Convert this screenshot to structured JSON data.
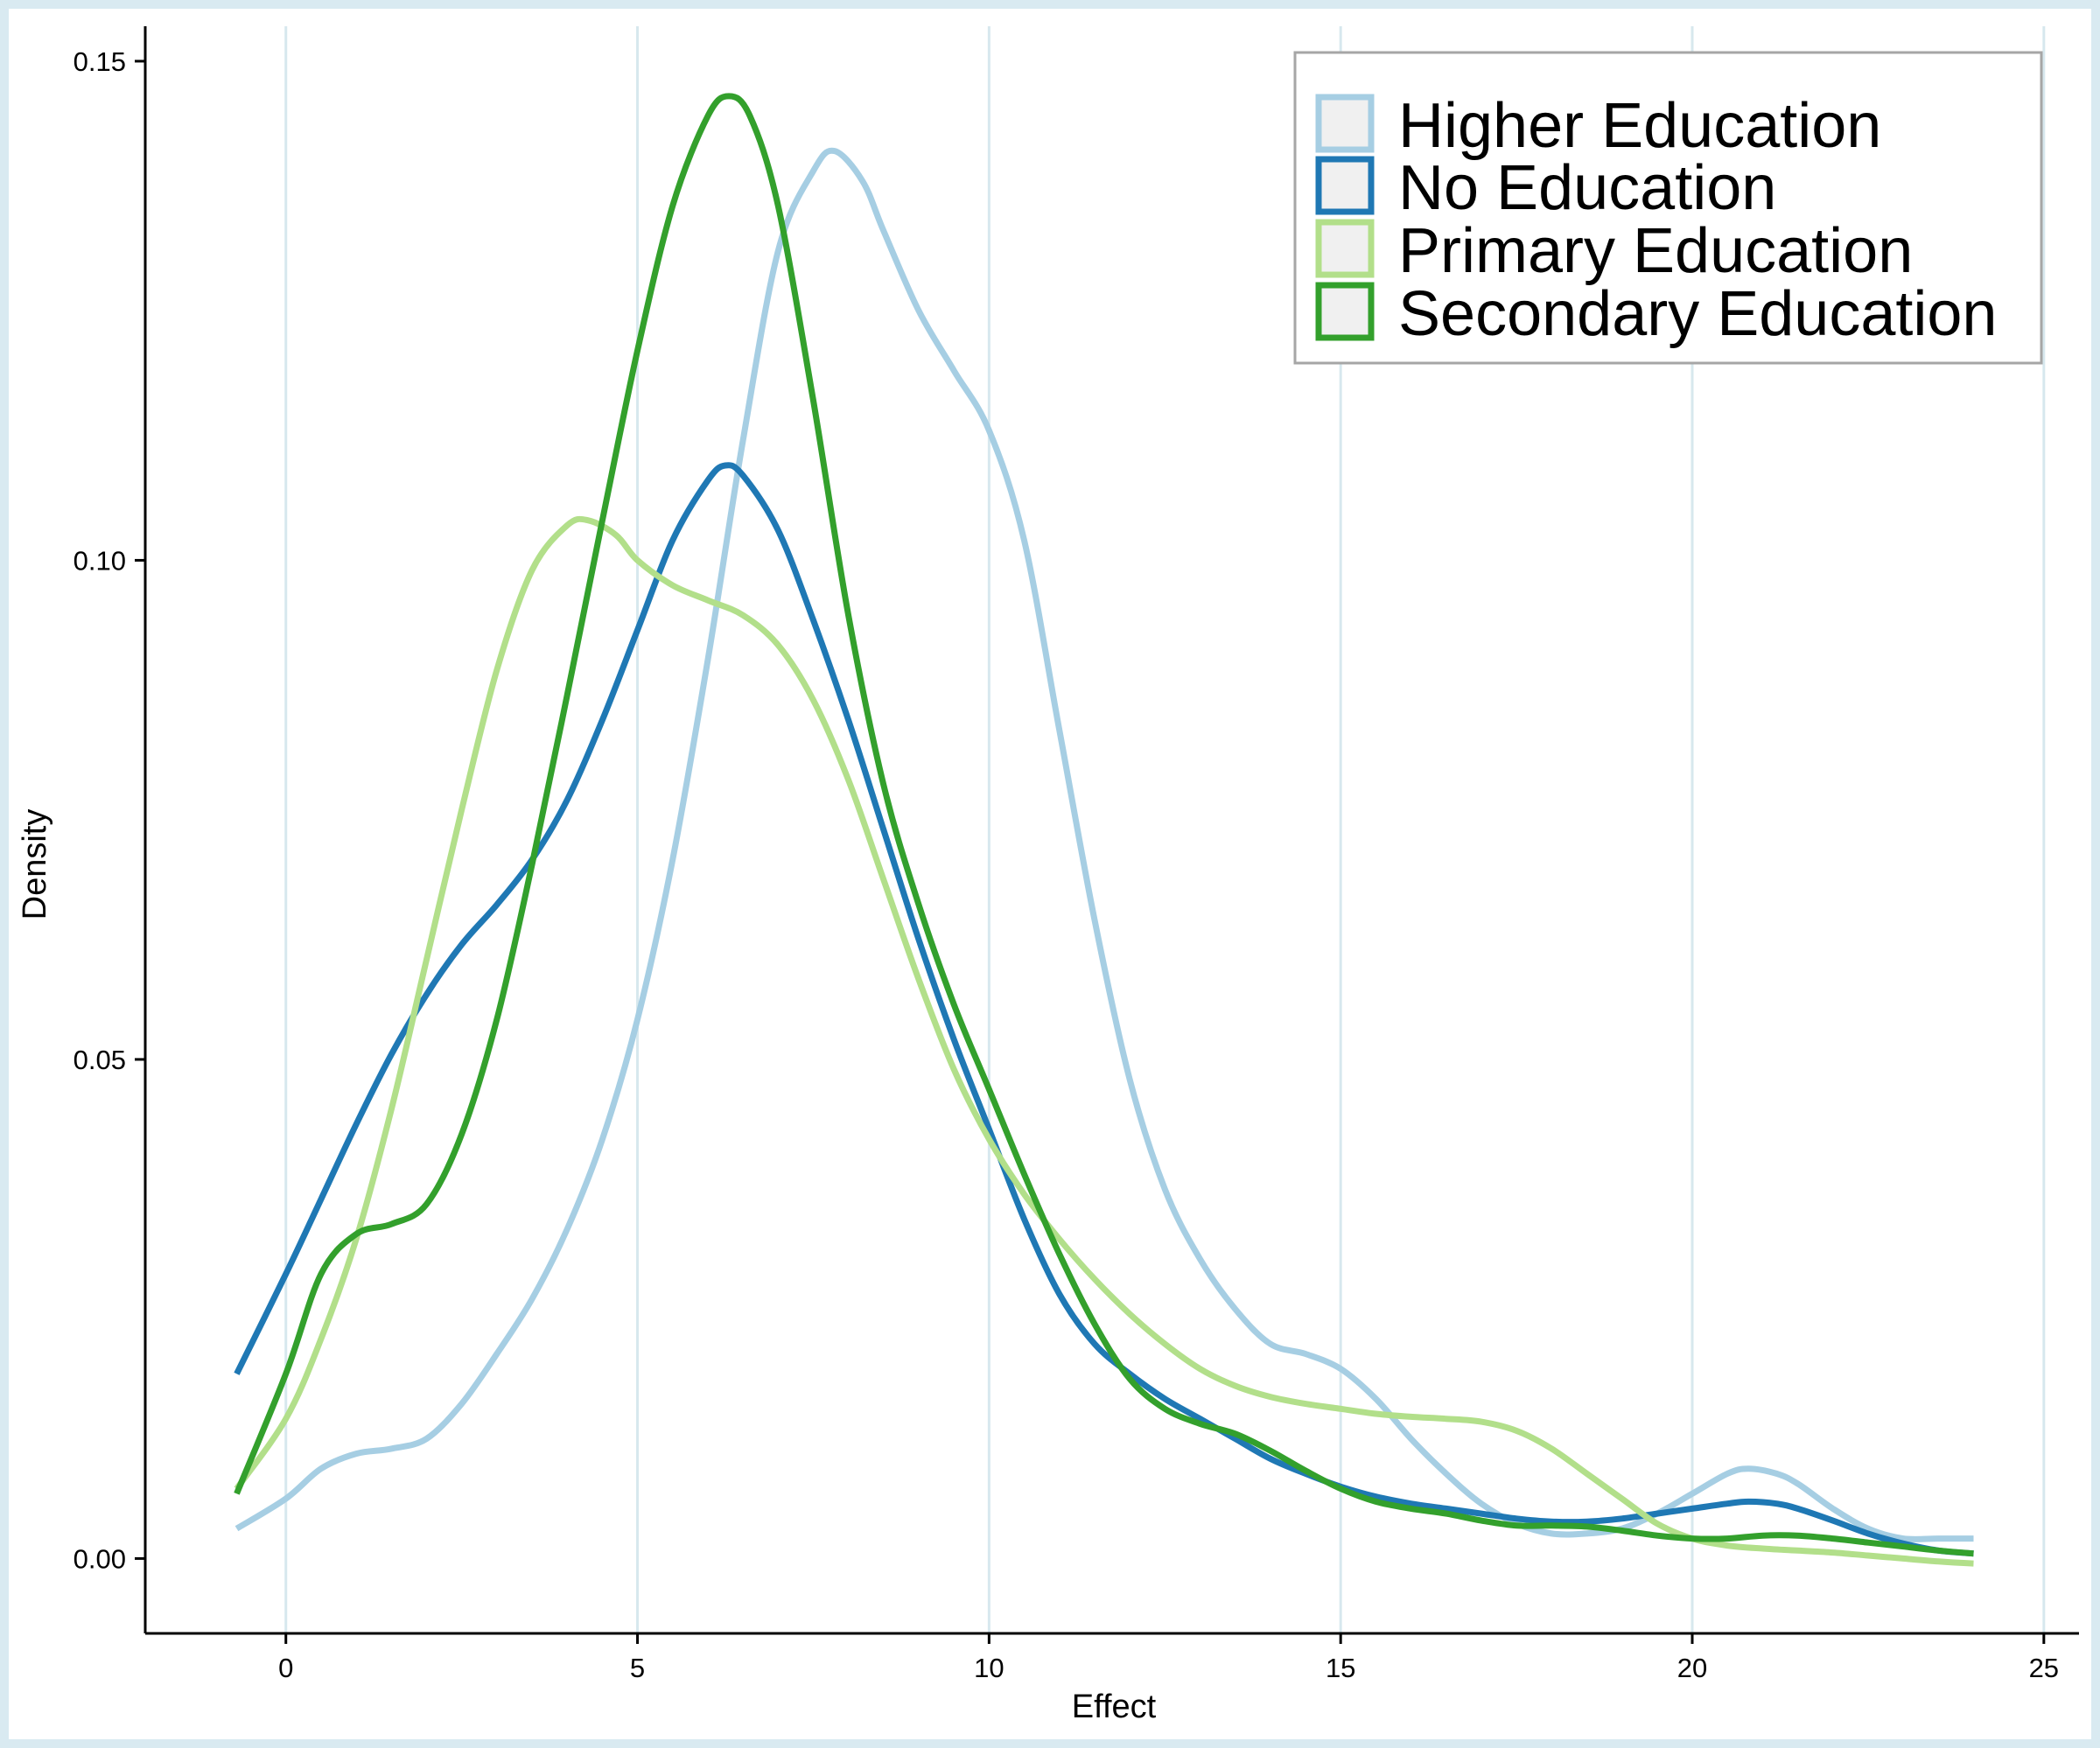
{
  "chart_data": {
    "type": "line",
    "title": "",
    "xlabel": "Effect",
    "ylabel": "Density",
    "xlim": [
      -2,
      25.5
    ],
    "ylim": [
      -0.0075,
      0.1535
    ],
    "x_ticks": [
      {
        "value": 0,
        "label": "0"
      },
      {
        "value": 5,
        "label": "5"
      },
      {
        "value": 10,
        "label": "10"
      },
      {
        "value": 15,
        "label": "15"
      },
      {
        "value": 20,
        "label": "20"
      },
      {
        "value": 25,
        "label": "25"
      }
    ],
    "y_ticks": [
      {
        "value": 0,
        "label": "0.00"
      },
      {
        "value": 0.05,
        "label": "0.05"
      },
      {
        "value": 0.1,
        "label": "0.10"
      },
      {
        "value": 0.15,
        "label": "0.15"
      }
    ],
    "grid": {
      "vertical": true,
      "horizontal": false
    },
    "legend_position": "top-right",
    "series": [
      {
        "name": "Higher Education",
        "color": "#a6cee3",
        "points": [
          [
            -0.7,
            0.003
          ],
          [
            0,
            0.006
          ],
          [
            0.5,
            0.009
          ],
          [
            1,
            0.0105
          ],
          [
            1.5,
            0.011
          ],
          [
            2,
            0.012
          ],
          [
            2.5,
            0.0155
          ],
          [
            3,
            0.0205
          ],
          [
            3.5,
            0.026
          ],
          [
            4,
            0.033
          ],
          [
            4.5,
            0.042
          ],
          [
            5,
            0.054
          ],
          [
            5.5,
            0.07
          ],
          [
            6,
            0.09
          ],
          [
            6.5,
            0.112
          ],
          [
            7,
            0.131
          ],
          [
            7.5,
            0.139
          ],
          [
            7.8,
            0.141
          ],
          [
            8.2,
            0.138
          ],
          [
            8.5,
            0.133
          ],
          [
            9,
            0.125
          ],
          [
            9.5,
            0.119
          ],
          [
            10,
            0.113
          ],
          [
            10.5,
            0.102
          ],
          [
            11,
            0.083
          ],
          [
            11.5,
            0.064
          ],
          [
            12,
            0.048
          ],
          [
            12.5,
            0.037
          ],
          [
            13,
            0.03
          ],
          [
            13.5,
            0.025
          ],
          [
            14,
            0.0215
          ],
          [
            14.5,
            0.0205
          ],
          [
            15,
            0.019
          ],
          [
            15.5,
            0.016
          ],
          [
            16,
            0.012
          ],
          [
            16.5,
            0.0085
          ],
          [
            17,
            0.0055
          ],
          [
            17.5,
            0.0035
          ],
          [
            18,
            0.0025
          ],
          [
            18.5,
            0.0025
          ],
          [
            19,
            0.003
          ],
          [
            19.5,
            0.0045
          ],
          [
            20,
            0.0065
          ],
          [
            20.5,
            0.0085
          ],
          [
            20.8,
            0.009
          ],
          [
            21.2,
            0.0085
          ],
          [
            21.5,
            0.0075
          ],
          [
            22,
            0.005
          ],
          [
            22.5,
            0.003
          ],
          [
            23,
            0.002
          ],
          [
            23.5,
            0.002
          ],
          [
            24,
            0.002
          ]
        ]
      },
      {
        "name": "No Education",
        "color": "#1f78b4",
        "points": [
          [
            -0.7,
            0.0185
          ],
          [
            0,
            0.0285
          ],
          [
            0.5,
            0.036
          ],
          [
            1,
            0.0435
          ],
          [
            1.5,
            0.0505
          ],
          [
            2,
            0.0565
          ],
          [
            2.5,
            0.0615
          ],
          [
            3,
            0.0655
          ],
          [
            3.5,
            0.07
          ],
          [
            4,
            0.076
          ],
          [
            4.5,
            0.084
          ],
          [
            5,
            0.093
          ],
          [
            5.5,
            0.102
          ],
          [
            6,
            0.108
          ],
          [
            6.25,
            0.1095
          ],
          [
            6.5,
            0.1085
          ],
          [
            7,
            0.103
          ],
          [
            7.5,
            0.094
          ],
          [
            8,
            0.084
          ],
          [
            8.5,
            0.073
          ],
          [
            9,
            0.062
          ],
          [
            9.5,
            0.052
          ],
          [
            10,
            0.043
          ],
          [
            10.5,
            0.034
          ],
          [
            11,
            0.0265
          ],
          [
            11.5,
            0.0215
          ],
          [
            12,
            0.0185
          ],
          [
            12.5,
            0.016
          ],
          [
            13,
            0.014
          ],
          [
            13.5,
            0.012
          ],
          [
            14,
            0.01
          ],
          [
            14.5,
            0.0085
          ],
          [
            15,
            0.0072
          ],
          [
            15.5,
            0.0062
          ],
          [
            16,
            0.0055
          ],
          [
            16.5,
            0.005
          ],
          [
            17,
            0.0045
          ],
          [
            17.5,
            0.004
          ],
          [
            18,
            0.0037
          ],
          [
            18.5,
            0.0037
          ],
          [
            19,
            0.004
          ],
          [
            19.5,
            0.0045
          ],
          [
            20,
            0.005
          ],
          [
            20.5,
            0.0055
          ],
          [
            20.8,
            0.0057
          ],
          [
            21.2,
            0.0055
          ],
          [
            21.5,
            0.005
          ],
          [
            22,
            0.0038
          ],
          [
            22.5,
            0.0025
          ],
          [
            23,
            0.0015
          ],
          [
            23.5,
            0.0008
          ],
          [
            24,
            0.0005
          ]
        ]
      },
      {
        "name": "Primary Education",
        "color": "#b2df8a",
        "points": [
          [
            -0.7,
            0.007
          ],
          [
            0,
            0.014
          ],
          [
            0.5,
            0.022
          ],
          [
            1,
            0.032
          ],
          [
            1.5,
            0.045
          ],
          [
            2,
            0.06
          ],
          [
            2.5,
            0.075
          ],
          [
            3,
            0.089
          ],
          [
            3.5,
            0.099
          ],
          [
            4,
            0.1035
          ],
          [
            4.3,
            0.104
          ],
          [
            4.7,
            0.1025
          ],
          [
            5,
            0.1
          ],
          [
            5.5,
            0.0975
          ],
          [
            6,
            0.096
          ],
          [
            6.5,
            0.0945
          ],
          [
            7,
            0.0915
          ],
          [
            7.5,
            0.086
          ],
          [
            8,
            0.078
          ],
          [
            8.5,
            0.068
          ],
          [
            9,
            0.058
          ],
          [
            9.5,
            0.049
          ],
          [
            10,
            0.042
          ],
          [
            10.5,
            0.0365
          ],
          [
            11,
            0.032
          ],
          [
            11.5,
            0.028
          ],
          [
            12,
            0.0245
          ],
          [
            12.5,
            0.0215
          ],
          [
            13,
            0.019
          ],
          [
            13.5,
            0.0173
          ],
          [
            14,
            0.0162
          ],
          [
            14.5,
            0.0155
          ],
          [
            15,
            0.015
          ],
          [
            15.5,
            0.0145
          ],
          [
            16,
            0.0142
          ],
          [
            16.5,
            0.014
          ],
          [
            17,
            0.0137
          ],
          [
            17.5,
            0.0128
          ],
          [
            18,
            0.011
          ],
          [
            18.5,
            0.0085
          ],
          [
            19,
            0.006
          ],
          [
            19.5,
            0.0035
          ],
          [
            20,
            0.002
          ],
          [
            20.5,
            0.0013
          ],
          [
            21,
            0.001
          ],
          [
            21.5,
            0.0008
          ],
          [
            22,
            0.0006
          ],
          [
            22.5,
            0.0003
          ],
          [
            23,
            0.0
          ],
          [
            23.5,
            -0.0003
          ],
          [
            24,
            -0.0005
          ]
        ]
      },
      {
        "name": "Secondary Education",
        "color": "#33a02c",
        "points": [
          [
            -0.7,
            0.0065
          ],
          [
            0,
            0.0185
          ],
          [
            0.5,
            0.0285
          ],
          [
            1,
            0.0325
          ],
          [
            1.5,
            0.0335
          ],
          [
            2,
            0.0355
          ],
          [
            2.5,
            0.0425
          ],
          [
            3,
            0.054
          ],
          [
            3.5,
            0.0695
          ],
          [
            4,
            0.0865
          ],
          [
            4.5,
            0.104
          ],
          [
            5,
            0.121
          ],
          [
            5.5,
            0.1355
          ],
          [
            6,
            0.1445
          ],
          [
            6.3,
            0.1465
          ],
          [
            6.6,
            0.1445
          ],
          [
            7,
            0.1355
          ],
          [
            7.5,
            0.116
          ],
          [
            8,
            0.0945
          ],
          [
            8.5,
            0.0775
          ],
          [
            9,
            0.0655
          ],
          [
            9.5,
            0.0555
          ],
          [
            10,
            0.047
          ],
          [
            10.5,
            0.0385
          ],
          [
            11,
            0.0305
          ],
          [
            11.5,
            0.0235
          ],
          [
            12,
            0.018
          ],
          [
            12.5,
            0.015
          ],
          [
            13,
            0.0135
          ],
          [
            13.5,
            0.0125
          ],
          [
            14,
            0.0108
          ],
          [
            14.5,
            0.0088
          ],
          [
            15,
            0.007
          ],
          [
            15.5,
            0.0057
          ],
          [
            16,
            0.005
          ],
          [
            16.5,
            0.0045
          ],
          [
            17,
            0.0038
          ],
          [
            17.5,
            0.0033
          ],
          [
            18,
            0.0033
          ],
          [
            18.5,
            0.0032
          ],
          [
            19,
            0.0028
          ],
          [
            19.5,
            0.0023
          ],
          [
            20,
            0.002
          ],
          [
            20.5,
            0.002
          ],
          [
            21,
            0.0023
          ],
          [
            21.5,
            0.0023
          ],
          [
            22,
            0.002
          ],
          [
            22.5,
            0.0016
          ],
          [
            23,
            0.0012
          ],
          [
            23.5,
            0.0008
          ],
          [
            24,
            0.0005
          ]
        ]
      }
    ]
  }
}
